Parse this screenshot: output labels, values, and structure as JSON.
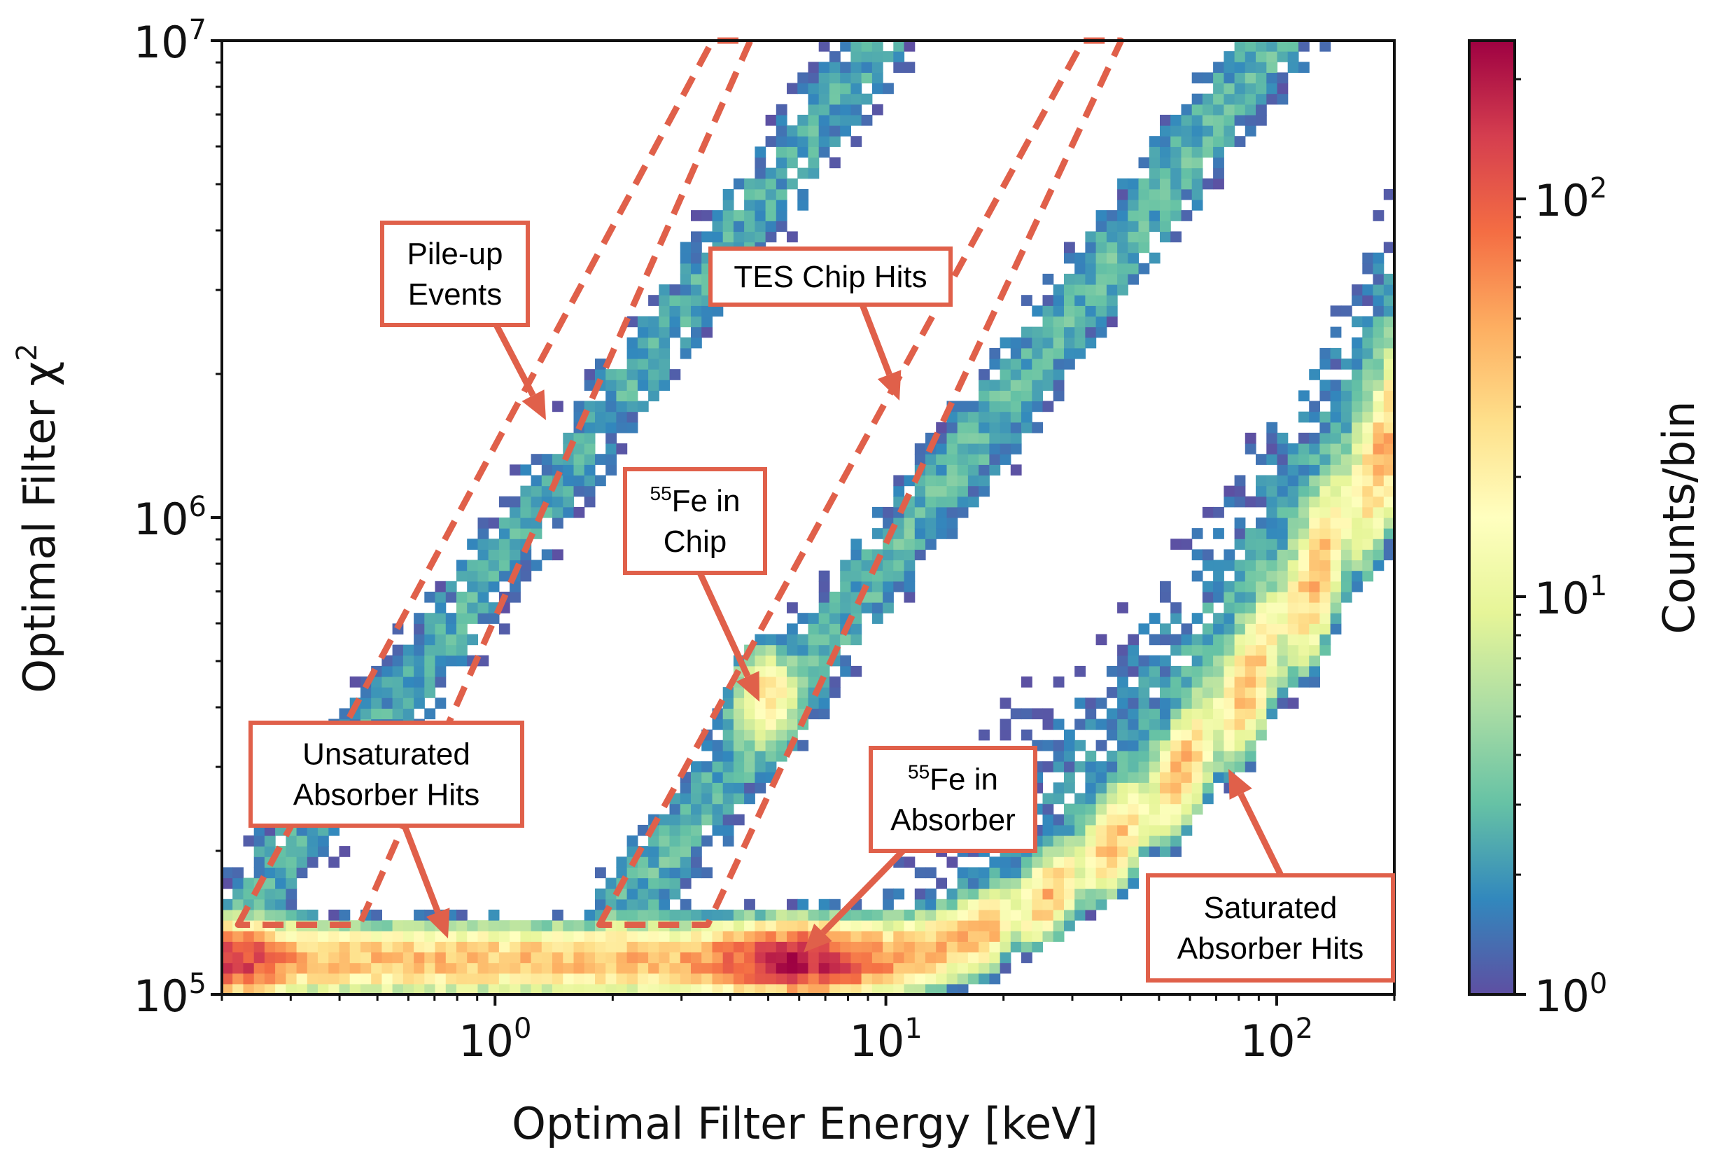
{
  "chart_data": {
    "type": "heatmap",
    "xlabel": "Optimal Filter Energy [keV]",
    "ylabel": "Optimal Filter χ²",
    "ylabel_base": "Optimal Filter χ",
    "ylabel_sup": "2",
    "x_scale": "log",
    "y_scale": "log",
    "xlim": [
      0.2,
      200
    ],
    "ylim": [
      100000,
      10000000
    ],
    "x_ticks": [
      {
        "value": 1,
        "base": "10",
        "exp": "0"
      },
      {
        "value": 10,
        "base": "10",
        "exp": "1"
      },
      {
        "value": 100,
        "base": "10",
        "exp": "2"
      }
    ],
    "y_ticks": [
      {
        "value": 100000,
        "base": "10",
        "exp": "5"
      },
      {
        "value": 1000000,
        "base": "10",
        "exp": "6"
      },
      {
        "value": 10000000,
        "base": "10",
        "exp": "7"
      }
    ],
    "colorbar": {
      "label": "Counts/bin",
      "scale": "log",
      "range": [
        1,
        250
      ],
      "colormap": "Spectral_r",
      "ticks": [
        {
          "value": 1,
          "base": "10",
          "exp": "0"
        },
        {
          "value": 10,
          "base": "10",
          "exp": "1"
        },
        {
          "value": 100,
          "base": "10",
          "exp": "2"
        }
      ]
    },
    "bins": {
      "x": 110,
      "y": 90
    },
    "populations": [
      {
        "name": "Unsaturated Absorber Hits",
        "x_range": [
          0.2,
          6
        ],
        "chi2_level": 120000,
        "counts_peak": 250
      },
      {
        "name": "55Fe in Absorber",
        "x": 6,
        "chi2": 118000,
        "counts_peak": 200
      },
      {
        "name": "Saturated Absorber Hits",
        "x_range": [
          10,
          200
        ],
        "chi2_start": 120000,
        "chi2_end": 2500000,
        "counts_peak": 60
      },
      {
        "name": "55Fe in Chip",
        "x": 4.9,
        "chi2": 420000,
        "counts_peak": 25
      },
      {
        "name": "Pile-up Events",
        "x_range": [
          0.2,
          4
        ],
        "chi2_range": [
          130000,
          10000000
        ]
      },
      {
        "name": "TES Chip Hits",
        "x_range": [
          1.8,
          38
        ],
        "chi2_range": [
          130000,
          10000000
        ]
      }
    ],
    "annotations": [
      {
        "lines": [
          "Pile-up",
          "Events"
        ]
      },
      {
        "lines": [
          "TES Chip Hits"
        ]
      },
      {
        "sup": "55",
        "lines": [
          "Fe in",
          "Chip"
        ]
      },
      {
        "lines": [
          "Unsaturated",
          "Absorber Hits"
        ]
      },
      {
        "sup": "55",
        "lines": [
          "Fe in",
          "Absorber"
        ]
      },
      {
        "lines": [
          "Saturated",
          "Absorber Hits"
        ]
      }
    ],
    "colors": {
      "annotation": "#e0604a",
      "grid": "none"
    }
  }
}
